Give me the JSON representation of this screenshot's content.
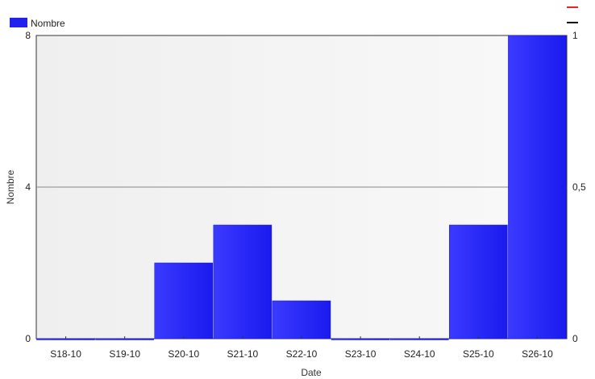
{
  "chart_data": {
    "type": "bar",
    "categories": [
      "S18-10",
      "S19-10",
      "S20-10",
      "S21-10",
      "S22-10",
      "S23-10",
      "S24-10",
      "S25-10",
      "S26-10"
    ],
    "series": [
      {
        "name": "Nombre",
        "values": [
          0,
          0,
          2,
          3,
          1,
          0,
          0,
          3,
          8
        ],
        "color": "#2222ee"
      }
    ],
    "xlabel": "Date",
    "ylabel": "Nombre",
    "ylim": [
      0,
      8
    ],
    "yticks": [
      "0",
      "4",
      "8"
    ],
    "y2lim": [
      0,
      1
    ],
    "y2ticks": [
      "0",
      "0,5",
      "1"
    ],
    "grid": "horizontal at midpoint",
    "legend_position": "top-left",
    "legend_extra_markers": [
      {
        "color": "#ee2222"
      },
      {
        "color": "#000000"
      }
    ],
    "plot_background": "#f2f2f2"
  }
}
